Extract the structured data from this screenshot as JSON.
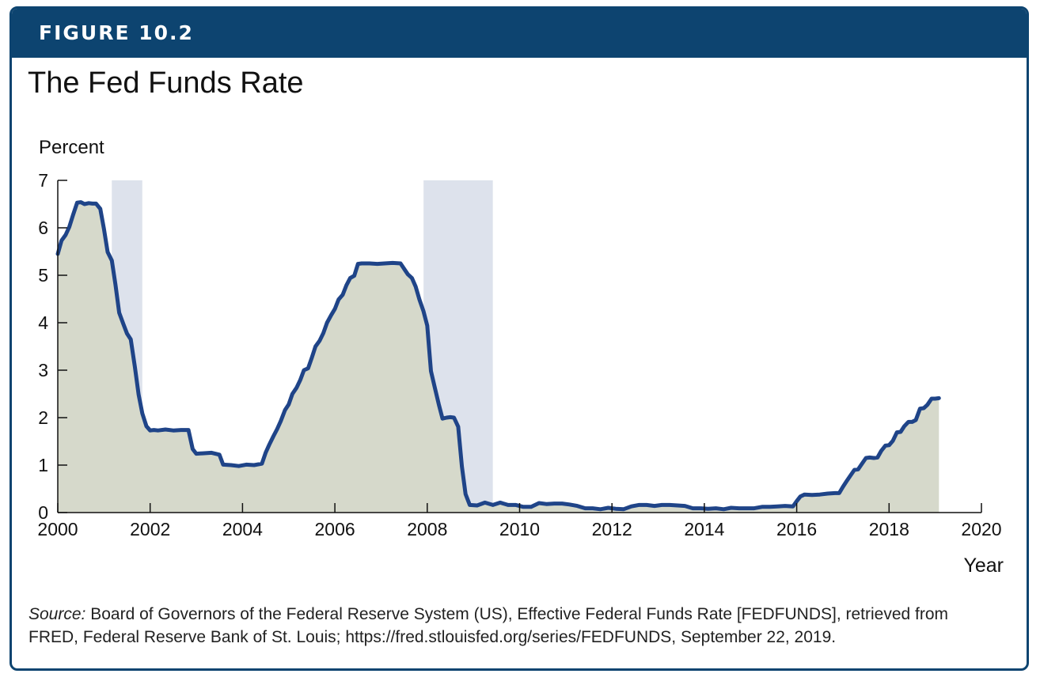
{
  "figure": {
    "label": "FIGURE 10.2",
    "title": "The Fed Funds Rate",
    "source_prefix": "Source:",
    "source_text": " Board of Governors of the Federal Reserve System (US), Effective Federal Funds Rate [FEDFUNDS], retrieved from FRED, Federal Reserve Bank of St. Louis; https://fred.stlouisfed.org/series/FEDFUNDS, September 22, 2019."
  },
  "colors": {
    "banner": "#0d4470",
    "line": "#1f4488",
    "fill": "#d6d9cb",
    "recession": "#dde2ec"
  },
  "chart_data": {
    "type": "area",
    "title": "The Fed Funds Rate",
    "xlabel": "Year",
    "ylabel": "Percent",
    "xlim": [
      2000,
      2020
    ],
    "ylim": [
      0,
      7
    ],
    "xticks": [
      2000,
      2002,
      2004,
      2006,
      2008,
      2010,
      2012,
      2014,
      2016,
      2018,
      2020
    ],
    "yticks": [
      0,
      1,
      2,
      3,
      4,
      5,
      6,
      7
    ],
    "grid": false,
    "shaded_periods": [
      [
        2001.17,
        2001.83
      ],
      [
        2007.92,
        2009.42
      ]
    ],
    "series": [
      {
        "x": [
          2000.0,
          2000.08,
          2000.17,
          2000.25,
          2000.33,
          2000.42,
          2000.5,
          2000.58,
          2000.67,
          2000.75,
          2000.83,
          2000.92,
          2001.0,
          2001.08,
          2001.17,
          2001.25,
          2001.33,
          2001.42,
          2001.5,
          2001.58,
          2001.67,
          2001.75,
          2001.83,
          2001.92,
          2002.0,
          2002.08,
          2002.17,
          2002.33,
          2002.5,
          2002.67,
          2002.83,
          2002.92,
          2003.0,
          2003.17,
          2003.33,
          2003.5,
          2003.58,
          2003.75,
          2003.92,
          2004.08,
          2004.25,
          2004.42,
          2004.5,
          2004.58,
          2004.67,
          2004.75,
          2004.83,
          2004.92,
          2005.0,
          2005.08,
          2005.17,
          2005.25,
          2005.33,
          2005.42,
          2005.5,
          2005.58,
          2005.67,
          2005.75,
          2005.83,
          2005.92,
          2006.0,
          2006.08,
          2006.17,
          2006.25,
          2006.33,
          2006.42,
          2006.5,
          2006.58,
          2006.75,
          2006.92,
          2007.08,
          2007.25,
          2007.42,
          2007.58,
          2007.67,
          2007.75,
          2007.83,
          2007.92,
          2008.0,
          2008.08,
          2008.17,
          2008.25,
          2008.33,
          2008.42,
          2008.5,
          2008.58,
          2008.67,
          2008.75,
          2008.83,
          2008.92,
          2009.08,
          2009.25,
          2009.42,
          2009.58,
          2009.75,
          2009.92,
          2010.08,
          2010.25,
          2010.42,
          2010.58,
          2010.75,
          2010.92,
          2011.08,
          2011.25,
          2011.42,
          2011.58,
          2011.75,
          2011.92,
          2012.08,
          2012.25,
          2012.42,
          2012.58,
          2012.75,
          2012.92,
          2013.08,
          2013.25,
          2013.42,
          2013.58,
          2013.75,
          2013.92,
          2014.08,
          2014.25,
          2014.42,
          2014.58,
          2014.75,
          2014.92,
          2015.08,
          2015.25,
          2015.42,
          2015.58,
          2015.75,
          2015.92,
          2016.0,
          2016.08,
          2016.17,
          2016.33,
          2016.5,
          2016.67,
          2016.83,
          2016.92,
          2017.0,
          2017.08,
          2017.17,
          2017.25,
          2017.33,
          2017.42,
          2017.5,
          2017.58,
          2017.67,
          2017.75,
          2017.83,
          2017.92,
          2018.0,
          2018.08,
          2018.17,
          2018.25,
          2018.33,
          2018.42,
          2018.5,
          2018.58,
          2018.67,
          2018.75,
          2018.83,
          2018.92,
          2019.0,
          2019.08
        ],
        "y": [
          5.45,
          5.73,
          5.85,
          6.02,
          6.27,
          6.53,
          6.54,
          6.5,
          6.52,
          6.51,
          6.51,
          6.4,
          5.98,
          5.49,
          5.31,
          4.8,
          4.21,
          3.97,
          3.77,
          3.65,
          3.07,
          2.49,
          2.09,
          1.82,
          1.73,
          1.74,
          1.73,
          1.75,
          1.73,
          1.74,
          1.74,
          1.34,
          1.24,
          1.25,
          1.26,
          1.22,
          1.01,
          1.0,
          0.98,
          1.01,
          1.0,
          1.03,
          1.26,
          1.43,
          1.61,
          1.76,
          1.93,
          2.16,
          2.28,
          2.5,
          2.63,
          2.79,
          3.0,
          3.04,
          3.26,
          3.5,
          3.62,
          3.78,
          4.0,
          4.16,
          4.29,
          4.49,
          4.59,
          4.79,
          4.94,
          4.99,
          5.24,
          5.25,
          5.25,
          5.24,
          5.25,
          5.26,
          5.25,
          5.02,
          4.94,
          4.76,
          4.49,
          4.24,
          3.94,
          2.98,
          2.61,
          2.28,
          1.98,
          2.0,
          2.01,
          2.0,
          1.81,
          0.97,
          0.39,
          0.16,
          0.15,
          0.21,
          0.16,
          0.21,
          0.16,
          0.16,
          0.12,
          0.12,
          0.2,
          0.18,
          0.19,
          0.19,
          0.17,
          0.14,
          0.09,
          0.09,
          0.07,
          0.1,
          0.08,
          0.07,
          0.13,
          0.16,
          0.16,
          0.14,
          0.16,
          0.16,
          0.15,
          0.14,
          0.09,
          0.09,
          0.08,
          0.09,
          0.07,
          0.1,
          0.09,
          0.09,
          0.09,
          0.12,
          0.12,
          0.13,
          0.14,
          0.13,
          0.24,
          0.34,
          0.38,
          0.37,
          0.38,
          0.4,
          0.41,
          0.41,
          0.54,
          0.66,
          0.79,
          0.9,
          0.91,
          1.04,
          1.15,
          1.16,
          1.15,
          1.16,
          1.3,
          1.41,
          1.42,
          1.51,
          1.69,
          1.7,
          1.82,
          1.91,
          1.91,
          1.95,
          2.19,
          2.2,
          2.27,
          2.4,
          2.4,
          2.41
        ]
      }
    ]
  }
}
